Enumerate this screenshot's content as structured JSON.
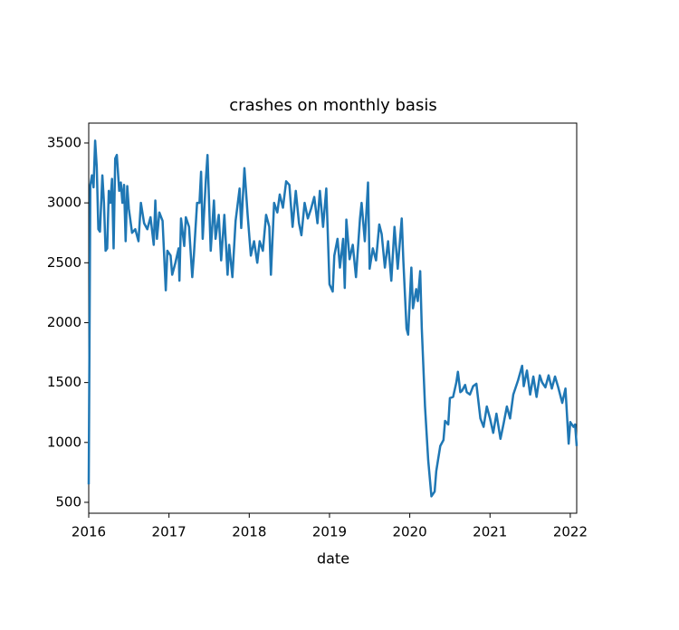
{
  "chart_data": {
    "type": "line",
    "title": "crashes on monthly basis",
    "x_label": "date",
    "x": [
      2016.0,
      2016.02,
      2016.04,
      2016.06,
      2016.08,
      2016.1,
      2016.12,
      2016.14,
      2016.17,
      2016.19,
      2016.21,
      2016.23,
      2016.25,
      2016.27,
      2016.29,
      2016.31,
      2016.33,
      2016.35,
      2016.38,
      2016.4,
      2016.42,
      2016.44,
      2016.46,
      2016.48,
      2016.5,
      2016.54,
      2016.58,
      2016.62,
      2016.65,
      2016.69,
      2016.73,
      2016.77,
      2016.81,
      2016.83,
      2016.85,
      2016.88,
      2016.92,
      2016.96,
      2016.98,
      2017.02,
      2017.04,
      2017.08,
      2017.12,
      2017.13,
      2017.15,
      2017.19,
      2017.21,
      2017.25,
      2017.29,
      2017.31,
      2017.35,
      2017.38,
      2017.4,
      2017.42,
      2017.46,
      2017.48,
      2017.52,
      2017.56,
      2017.58,
      2017.62,
      2017.65,
      2017.69,
      2017.73,
      2017.75,
      2017.79,
      2017.83,
      2017.88,
      2017.9,
      2017.94,
      2017.98,
      2018.02,
      2018.06,
      2018.1,
      2018.13,
      2018.17,
      2018.21,
      2018.25,
      2018.27,
      2018.31,
      2018.35,
      2018.38,
      2018.42,
      2018.46,
      2018.5,
      2018.54,
      2018.58,
      2018.62,
      2018.65,
      2018.69,
      2018.73,
      2018.77,
      2018.81,
      2018.85,
      2018.88,
      2018.92,
      2018.96,
      2019.0,
      2019.04,
      2019.06,
      2019.1,
      2019.13,
      2019.17,
      2019.19,
      2019.21,
      2019.25,
      2019.29,
      2019.33,
      2019.38,
      2019.4,
      2019.44,
      2019.48,
      2019.5,
      2019.54,
      2019.58,
      2019.62,
      2019.65,
      2019.69,
      2019.73,
      2019.77,
      2019.81,
      2019.85,
      2019.9,
      2019.92,
      2019.96,
      2019.98,
      2020.02,
      2020.04,
      2020.08,
      2020.1,
      2020.13,
      2020.15,
      2020.19,
      2020.23,
      2020.27,
      2020.31,
      2020.33,
      2020.38,
      2020.42,
      2020.44,
      2020.48,
      2020.5,
      2020.54,
      2020.58,
      2020.6,
      2020.63,
      2020.65,
      2020.69,
      2020.71,
      2020.75,
      2020.79,
      2020.83,
      2020.88,
      2020.92,
      2020.96,
      2021.0,
      2021.04,
      2021.08,
      2021.13,
      2021.17,
      2021.21,
      2021.25,
      2021.29,
      2021.35,
      2021.4,
      2021.42,
      2021.46,
      2021.5,
      2021.54,
      2021.58,
      2021.62,
      2021.65,
      2021.69,
      2021.73,
      2021.77,
      2021.81,
      2021.85,
      2021.9,
      2021.94,
      2021.98,
      2022.0,
      2022.04,
      2022.06,
      2022.08
    ],
    "series": [
      {
        "color": "#1f77b4",
        "values": [
          650,
          3150,
          3230,
          3130,
          3520,
          3300,
          2780,
          2760,
          3230,
          3000,
          2600,
          2620,
          3100,
          3000,
          3200,
          2620,
          3370,
          3400,
          3100,
          3170,
          3000,
          3150,
          2680,
          3140,
          2950,
          2750,
          2780,
          2680,
          3000,
          2830,
          2780,
          2880,
          2650,
          3020,
          2700,
          2920,
          2850,
          2270,
          2600,
          2560,
          2400,
          2500,
          2620,
          2350,
          2870,
          2640,
          2880,
          2800,
          2380,
          2560,
          3000,
          3000,
          3260,
          2700,
          3200,
          3400,
          2600,
          3020,
          2700,
          2900,
          2520,
          2900,
          2400,
          2650,
          2380,
          2850,
          3120,
          2790,
          3290,
          2900,
          2560,
          2680,
          2500,
          2680,
          2600,
          2900,
          2800,
          2400,
          3000,
          2920,
          3070,
          2960,
          3180,
          3150,
          2800,
          3100,
          2830,
          2730,
          3000,
          2870,
          2950,
          3050,
          2830,
          3100,
          2800,
          3120,
          2320,
          2260,
          2560,
          2700,
          2460,
          2700,
          2290,
          2860,
          2530,
          2650,
          2380,
          2870,
          3000,
          2680,
          3170,
          2450,
          2620,
          2520,
          2820,
          2740,
          2460,
          2680,
          2350,
          2800,
          2450,
          2870,
          2520,
          1950,
          1900,
          2460,
          2120,
          2280,
          2180,
          2430,
          1950,
          1300,
          850,
          550,
          590,
          760,
          970,
          1020,
          1180,
          1150,
          1370,
          1380,
          1500,
          1590,
          1420,
          1430,
          1480,
          1420,
          1400,
          1470,
          1490,
          1200,
          1130,
          1300,
          1200,
          1080,
          1240,
          1030,
          1160,
          1300,
          1200,
          1400,
          1520,
          1640,
          1470,
          1600,
          1400,
          1550,
          1380,
          1560,
          1500,
          1460,
          1560,
          1450,
          1550,
          1460,
          1330,
          1450,
          990,
          1170,
          1130,
          1150,
          970
        ]
      }
    ],
    "xlim": [
      2016,
      2022.08
    ],
    "xticks": [
      2016,
      2017,
      2018,
      2019,
      2020,
      2021,
      2022
    ],
    "ylim": [
      409,
      3666
    ],
    "yticks": [
      500,
      1000,
      1500,
      2000,
      2500,
      3000,
      3500
    ]
  }
}
